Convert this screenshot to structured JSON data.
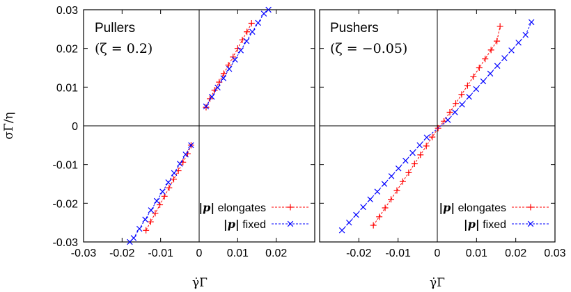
{
  "chart_data": [
    {
      "type": "scatter",
      "title": "Pullers",
      "subtitle": "(ζ = 0.2)",
      "xlabel": "γ̇Γ",
      "ylabel": "σΓ/η",
      "xlim": [
        -0.03,
        0.03
      ],
      "ylim": [
        -0.03,
        0.03
      ],
      "xticks": [
        "-0.03",
        "-0.02",
        "-0.01",
        "0",
        "0.01",
        "0.02"
      ],
      "yticks": [
        "0.03",
        "0.02",
        "0.01",
        "0",
        "-0.01",
        "-0.02",
        "-0.03"
      ],
      "legend_position": "bottom-right",
      "series": [
        {
          "name": "|p| elongates",
          "legend_symbol": "|p|",
          "legend_text": " elongates",
          "color": "#ff0000",
          "marker": "plus",
          "line": "dashed",
          "segments": [
            {
              "x": [
                0.0018,
                0.0028,
                0.004,
                0.0052,
                0.0064,
                0.0076,
                0.0088,
                0.01,
                0.0112,
                0.0124,
                0.0136
              ],
              "y": [
                0.0048,
                0.007,
                0.0092,
                0.0113,
                0.0135,
                0.0157,
                0.0178,
                0.02,
                0.0222,
                0.0243,
                0.0265
              ]
            },
            {
              "x": [
                -0.0021,
                -0.003,
                -0.0042,
                -0.0054,
                -0.0066,
                -0.0078,
                -0.009,
                -0.0102,
                -0.0114,
                -0.0126,
                -0.0138
              ],
              "y": [
                -0.005,
                -0.0072,
                -0.0094,
                -0.0116,
                -0.0138,
                -0.016,
                -0.0182,
                -0.0204,
                -0.0226,
                -0.0248,
                -0.027
              ]
            }
          ]
        },
        {
          "name": "|p| fixed",
          "legend_symbol": "|p|",
          "legend_text": " fixed",
          "color": "#0000ff",
          "marker": "cross",
          "line": "dashed",
          "segments": [
            {
              "x": [
                0.0018,
                0.0033,
                0.0048,
                0.0063,
                0.0078,
                0.0093,
                0.0108,
                0.0123,
                0.0138,
                0.0153,
                0.0168,
                0.018
              ],
              "y": [
                0.005,
                0.0075,
                0.0099,
                0.0123,
                0.0147,
                0.0171,
                0.0195,
                0.0219,
                0.0243,
                0.0266,
                0.029,
                0.03
              ]
            },
            {
              "x": [
                -0.0021,
                -0.0035,
                -0.005,
                -0.0065,
                -0.008,
                -0.0095,
                -0.011,
                -0.0125,
                -0.014,
                -0.0155,
                -0.017,
                -0.018
              ],
              "y": [
                -0.005,
                -0.0074,
                -0.0098,
                -0.0122,
                -0.0146,
                -0.017,
                -0.0194,
                -0.0218,
                -0.0242,
                -0.0266,
                -0.029,
                -0.03
              ]
            }
          ]
        }
      ]
    },
    {
      "type": "scatter",
      "title": "Pushers",
      "subtitle": "(ζ = −0.05)",
      "xlabel": "γ̇Γ",
      "ylabel": "",
      "xlim": [
        -0.03,
        0.03
      ],
      "ylim": [
        -0.03,
        0.03
      ],
      "xticks": [
        "-0.02",
        "-0.01",
        "0",
        "0.01",
        "0.02",
        "0.03"
      ],
      "yticks": [],
      "legend_position": "bottom-right",
      "series": [
        {
          "name": "|p| elongates",
          "legend_symbol": "|p|",
          "legend_text": " elongates",
          "color": "#ff0000",
          "marker": "plus",
          "line": "dashed",
          "segments": [
            {
              "x": [
                -0.0163,
                -0.0148,
                -0.0133,
                -0.0118,
                -0.0103,
                -0.0088,
                -0.0073,
                -0.0058,
                -0.0043,
                -0.0028,
                -0.0013,
                0.0002,
                0.0017,
                0.0032,
                0.0047,
                0.0062,
                0.0077,
                0.0092,
                0.0107,
                0.0122,
                0.0137,
                0.0152,
                0.016
              ],
              "y": [
                -0.0257,
                -0.0235,
                -0.0212,
                -0.019,
                -0.0167,
                -0.0144,
                -0.0121,
                -0.0098,
                -0.0075,
                -0.0052,
                -0.0029,
                -0.0006,
                0.0012,
                0.0035,
                0.0058,
                0.0081,
                0.0104,
                0.0127,
                0.015,
                0.0173,
                0.0196,
                0.0219,
                0.0257
              ]
            }
          ]
        },
        {
          "name": "|p| fixed",
          "legend_symbol": "|p|",
          "legend_text": " fixed",
          "color": "#0000ff",
          "marker": "cross",
          "line": "dashed",
          "segments": [
            {
              "x": [
                -0.0243,
                -0.0225,
                -0.0207,
                -0.0189,
                -0.0171,
                -0.0153,
                -0.0135,
                -0.0117,
                -0.0099,
                -0.0081,
                -0.0063,
                -0.0045,
                -0.0027,
                0.0027,
                0.0045,
                0.0063,
                0.0081,
                0.0099,
                0.0117,
                0.0135,
                0.0153,
                0.0171,
                0.0189,
                0.0207,
                0.0225,
                0.024
              ],
              "y": [
                -0.027,
                -0.025,
                -0.023,
                -0.021,
                -0.019,
                -0.017,
                -0.015,
                -0.013,
                -0.011,
                -0.009,
                -0.007,
                -0.005,
                -0.003,
                0.0015,
                0.0035,
                0.0055,
                0.0075,
                0.0095,
                0.0115,
                0.0135,
                0.0155,
                0.0175,
                0.0195,
                0.0215,
                0.0235,
                0.0268
              ]
            }
          ]
        }
      ]
    }
  ]
}
